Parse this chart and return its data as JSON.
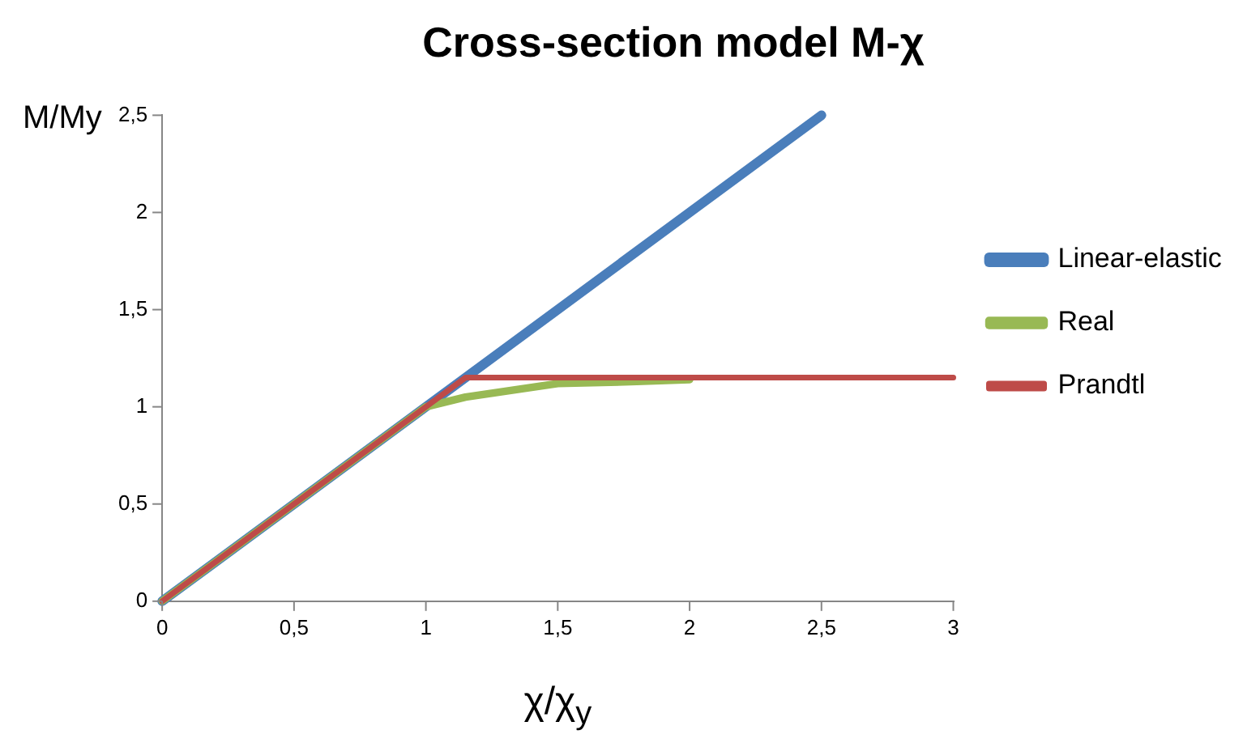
{
  "chart_data": {
    "type": "line",
    "title": "Cross-section model M-χ",
    "xlabel": "χ/χ$_{y}$",
    "ylabel": "M/My",
    "xlim": [
      0,
      3
    ],
    "xticks": [
      0,
      {
        "value": 0.5,
        "label": "0,5"
      },
      1,
      {
        "value": 1.5,
        "label": "1,5"
      },
      2,
      {
        "value": 2.5,
        "label": "2,5"
      },
      3
    ],
    "ylim": [
      0,
      2.5
    ],
    "yticks": [
      0,
      {
        "value": 0.5,
        "label": "0,5"
      },
      1,
      {
        "value": 1.5,
        "label": "1,5"
      },
      2,
      {
        "value": 2.5,
        "label": "2,5"
      }
    ],
    "grid": false,
    "legend": "right",
    "marker": "none",
    "line_style": "solid",
    "series": [
      {
        "name": "Linear-elastic",
        "color": "#4a7ebb",
        "x": [
          0,
          2.5
        ],
        "values": [
          0,
          2.5
        ]
      },
      {
        "name": "Real",
        "color": "#98b954",
        "x": [
          0,
          1,
          1.15,
          1.5,
          1.8,
          2
        ],
        "values": [
          0,
          1,
          1.05,
          1.12,
          1.13,
          1.14
        ]
      },
      {
        "name": "Prandtl",
        "color": "#be4b48",
        "x": [
          0,
          1.15,
          3
        ],
        "values": [
          0,
          1.15,
          1.15
        ]
      }
    ]
  }
}
